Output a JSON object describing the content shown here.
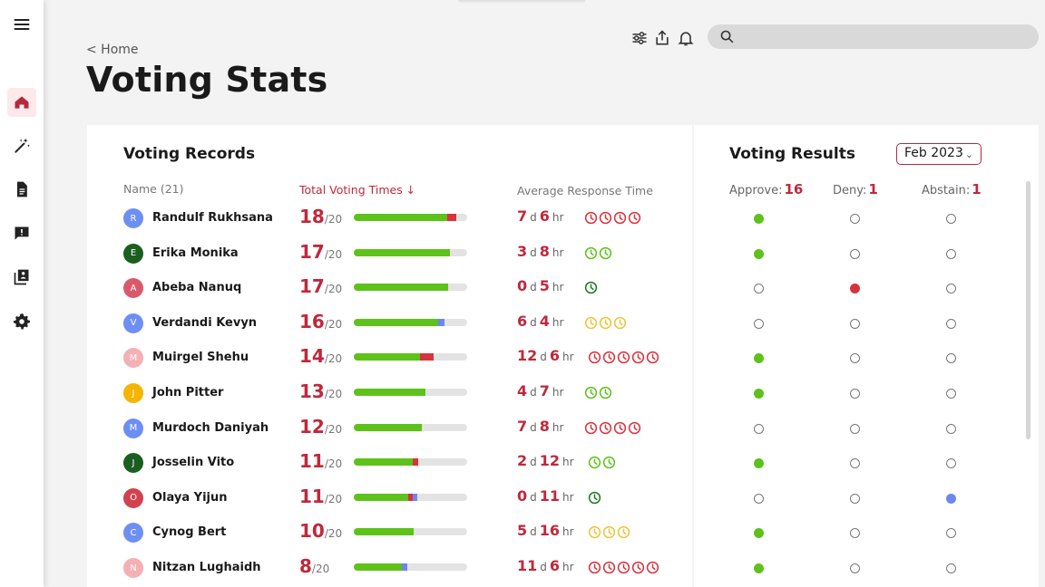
{
  "colors": {
    "accent": "#c0283b",
    "green": "#5dc219",
    "red": "#d8323e",
    "blue": "#6e86f0",
    "yellow": "#eec33a",
    "dark_green": "#1c7a1c"
  },
  "sidebar": {
    "items": [
      "menu-icon",
      "home-icon",
      "magic-wand-icon",
      "document-icon",
      "feedback-icon",
      "library-icon",
      "settings-icon"
    ]
  },
  "header": {
    "breadcrumb": "< Home",
    "title": "Voting Stats",
    "search_placeholder": ""
  },
  "records": {
    "title": "Voting Records",
    "col_name": "Name (21)",
    "col_total": "Total Voting Times ↓",
    "col_response": "Average Response Time",
    "denominator": "/20",
    "rows": [
      {
        "initial": "R",
        "avatar_color": "#6e8ff2",
        "name": "Randulf Rukhsana",
        "total": "18",
        "bar": [
          {
            "c": "#5dc219",
            "v": 0.82
          },
          {
            "c": "#d8323e",
            "v": 0.08
          }
        ],
        "days": "7",
        "hours": "6",
        "clocks": [
          "#d8323e",
          "#d8323e",
          "#d8323e",
          "#d8323e"
        ]
      },
      {
        "initial": "E",
        "avatar_color": "#1b5e20",
        "name": "Erika Monika",
        "total": "17",
        "bar": [
          {
            "c": "#5dc219",
            "v": 0.85
          }
        ],
        "days": "3",
        "hours": "8",
        "clocks": [
          "#5dc219",
          "#5dc219"
        ]
      },
      {
        "initial": "A",
        "avatar_color": "#d85a6a",
        "name": "Abeba Nanuq",
        "total": "17",
        "bar": [
          {
            "c": "#5dc219",
            "v": 0.83
          }
        ],
        "days": "0",
        "hours": "5",
        "clocks": [
          "#1c7a1c"
        ]
      },
      {
        "initial": "V",
        "avatar_color": "#6e8ff2",
        "name": "Verdandi Kevyn",
        "total": "16",
        "bar": [
          {
            "c": "#5dc219",
            "v": 0.74
          },
          {
            "c": "#6e86f0",
            "v": 0.06
          }
        ],
        "days": "6",
        "hours": "4",
        "clocks": [
          "#eec33a",
          "#eec33a",
          "#eec33a"
        ]
      },
      {
        "initial": "M",
        "avatar_color": "#f4b0b4",
        "name": "Muirgel Shehu",
        "total": "14",
        "bar": [
          {
            "c": "#5dc219",
            "v": 0.58
          },
          {
            "c": "#d8323e",
            "v": 0.12
          }
        ],
        "days": "12",
        "hours": "6",
        "clocks": [
          "#d8323e",
          "#d8323e",
          "#d8323e",
          "#d8323e",
          "#d8323e"
        ]
      },
      {
        "initial": "J",
        "avatar_color": "#f5b400",
        "name": "John Pitter",
        "total": "13",
        "bar": [
          {
            "c": "#5dc219",
            "v": 0.63
          }
        ],
        "days": "4",
        "hours": "7",
        "clocks": [
          "#5dc219",
          "#5dc219"
        ]
      },
      {
        "initial": "M",
        "avatar_color": "#6e8ff2",
        "name": "Murdoch Daniyah",
        "total": "12",
        "bar": [
          {
            "c": "#5dc219",
            "v": 0.6
          }
        ],
        "days": "7",
        "hours": "8",
        "clocks": [
          "#d8323e",
          "#d8323e",
          "#d8323e",
          "#d8323e"
        ]
      },
      {
        "initial": "J",
        "avatar_color": "#1b5e20",
        "name": "Josselin Vito",
        "total": "11",
        "bar": [
          {
            "c": "#5dc219",
            "v": 0.52
          },
          {
            "c": "#d8323e",
            "v": 0.05
          }
        ],
        "days": "2",
        "hours": "12",
        "clocks": [
          "#5dc219",
          "#5dc219"
        ]
      },
      {
        "initial": "O",
        "avatar_color": "#d2424e",
        "name": "Olaya Yijun",
        "total": "11",
        "bar": [
          {
            "c": "#5dc219",
            "v": 0.48
          },
          {
            "c": "#d8323e",
            "v": 0.04
          },
          {
            "c": "#6e86f0",
            "v": 0.04
          }
        ],
        "days": "0",
        "hours": "11",
        "clocks": [
          "#1c7a1c"
        ]
      },
      {
        "initial": "C",
        "avatar_color": "#6e8ff2",
        "name": "Cynog Bert",
        "total": "10",
        "bar": [
          {
            "c": "#5dc219",
            "v": 0.53
          }
        ],
        "days": "5",
        "hours": "16",
        "clocks": [
          "#eec33a",
          "#eec33a",
          "#eec33a"
        ]
      },
      {
        "initial": "N",
        "avatar_color": "#f4b0b4",
        "name": "Nitzan Lughaidh",
        "total": "8",
        "bar": [
          {
            "c": "#5dc219",
            "v": 0.42
          },
          {
            "c": "#6e86f0",
            "v": 0.05
          }
        ],
        "days": "11",
        "hours": "6",
        "clocks": [
          "#d8323e",
          "#d8323e",
          "#d8323e",
          "#d8323e",
          "#d8323e"
        ]
      }
    ]
  },
  "results": {
    "title": "Voting Results",
    "month": "Feb 2023",
    "approve_label": "Approve:",
    "approve_count": "16",
    "deny_label": "Deny:",
    "deny_count": "1",
    "abstain_label": "Abstain:",
    "abstain_count": "1",
    "rows": [
      "approve",
      "approve",
      "deny",
      "none",
      "approve",
      "approve",
      "none",
      "approve",
      "abstain",
      "approve",
      "approve"
    ]
  }
}
